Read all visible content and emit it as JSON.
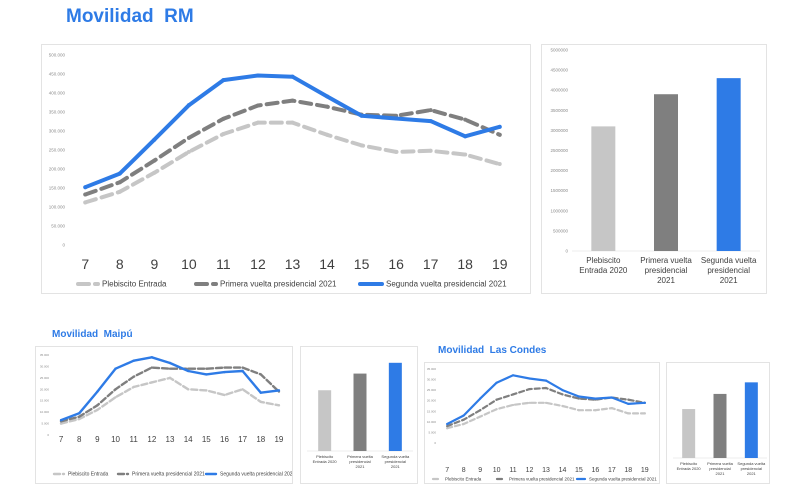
{
  "titles": {
    "main": "Movilidad  RM",
    "maipu": "Movilidad  Maipú",
    "las_condes": "Movilidad  Las Condes"
  },
  "colors": {
    "plebiscito": "#c6c6c6",
    "primera": "#7f7f7f",
    "segunda": "#2e7be6",
    "title": "#2e7be6"
  },
  "chart_data": [
    {
      "id": "rm-line",
      "type": "line",
      "title": "Movilidad  RM",
      "categories": [
        "7",
        "8",
        "9",
        "10",
        "11",
        "12",
        "13",
        "14",
        "15",
        "16",
        "17",
        "18",
        "19"
      ],
      "ylim": [
        0,
        500000
      ],
      "yticks": [
        "0",
        "50.000",
        "100.000",
        "150.000",
        "200.000",
        "250.000",
        "300.000",
        "350.000",
        "400.000",
        "450.000",
        "500.000"
      ],
      "legend_position": "bottom",
      "series": [
        {
          "name": "Plebiscito Entrada",
          "style": "dashed",
          "color": "#c6c6c6",
          "values": [
            112000,
            140000,
            190000,
            245000,
            292000,
            322000,
            322000,
            290000,
            262000,
            245000,
            248000,
            238000,
            213000
          ]
        },
        {
          "name": "Primera vuelta presidencial 2021",
          "style": "dashed",
          "color": "#7f7f7f",
          "values": [
            133000,
            165000,
            222000,
            282000,
            332000,
            367000,
            380000,
            364000,
            343000,
            340000,
            355000,
            330000,
            290000
          ]
        },
        {
          "name": "Segunda vuelta presidencial 2021",
          "style": "solid",
          "color": "#2e7be6",
          "values": [
            152000,
            188000,
            277000,
            368000,
            434000,
            446000,
            443000,
            391000,
            340000,
            333000,
            326000,
            286000,
            311000
          ]
        }
      ]
    },
    {
      "id": "rm-bar",
      "type": "bar",
      "categories": [
        "Plebiscito Entrada 2020",
        "Primera vuelta presidencial 2021",
        "Segunda vuelta presidencial 2021"
      ],
      "values": [
        3100000,
        3900000,
        4300000
      ],
      "ylim": [
        0,
        5000000
      ],
      "yticks": [
        "0",
        "500000",
        "1000000",
        "1500000",
        "2000000",
        "2500000",
        "3000000",
        "3500000",
        "4000000",
        "4500000",
        "5000000"
      ]
    },
    {
      "id": "maipu-line",
      "type": "line",
      "title": "Movilidad  Maipú",
      "categories": [
        "7",
        "8",
        "9",
        "10",
        "11",
        "12",
        "13",
        "14",
        "15",
        "16",
        "17",
        "18",
        "19"
      ],
      "ylim": [
        0,
        35000
      ],
      "yticks": [
        "0",
        "5.000",
        "10.000",
        "15.000",
        "20.000",
        "25.000",
        "30.000",
        "35.000"
      ],
      "legend_position": "bottom",
      "series": [
        {
          "name": "Plebiscito Entrada",
          "style": "dashed",
          "color": "#c6c6c6",
          "values": [
            5000,
            7000,
            11000,
            16500,
            21000,
            23000,
            25000,
            20000,
            19500,
            17500,
            20000,
            14500,
            13000
          ]
        },
        {
          "name": "Primera vuelta presidencial 2021",
          "style": "dashed",
          "color": "#7f7f7f",
          "values": [
            6000,
            8000,
            13000,
            20000,
            25500,
            29500,
            29000,
            29000,
            29000,
            29500,
            29500,
            26500,
            19000
          ]
        },
        {
          "name": "Segunda vuelta presidencial 2021",
          "style": "solid",
          "color": "#2e7be6",
          "values": [
            6500,
            9500,
            19000,
            29000,
            32500,
            34000,
            31500,
            28000,
            26500,
            27500,
            28000,
            18500,
            19500
          ]
        }
      ]
    },
    {
      "id": "maipu-bar",
      "type": "bar",
      "categories": [
        "Plebiscito Entrada 2020",
        "Primera vuelta presidencial 2021",
        "Segunda vuelta presidencial 2021"
      ],
      "values": [
        0.62,
        0.79,
        0.9
      ],
      "ylim": [
        0,
        1
      ]
    },
    {
      "id": "lascondes-line",
      "type": "line",
      "title": "Movilidad  Las Condes",
      "categories": [
        "7",
        "8",
        "9",
        "10",
        "11",
        "12",
        "13",
        "14",
        "15",
        "16",
        "17",
        "18",
        "19"
      ],
      "ylim": [
        0,
        35000
      ],
      "yticks": [
        "0",
        "5.000",
        "10.000",
        "15.000",
        "20.000",
        "25.000",
        "30.000",
        "35.000"
      ],
      "legend_position": "bottom",
      "series": [
        {
          "name": "Plebiscito Entrada",
          "style": "dashed",
          "color": "#c6c6c6",
          "values": [
            7000,
            9000,
            12500,
            16000,
            18000,
            19000,
            19000,
            17500,
            15500,
            15500,
            16500,
            14000,
            14000
          ]
        },
        {
          "name": "Primera vuelta presidencial 2021",
          "style": "dashed",
          "color": "#7f7f7f",
          "values": [
            8000,
            11000,
            15500,
            20500,
            23000,
            25500,
            26000,
            23000,
            21000,
            20500,
            21500,
            20500,
            19000
          ]
        },
        {
          "name": "Segunda vuelta presidencial 2021",
          "style": "solid",
          "color": "#2e7be6",
          "values": [
            9000,
            13000,
            21000,
            28500,
            32000,
            30500,
            29500,
            25000,
            22000,
            21000,
            21500,
            18500,
            19000
          ]
        }
      ]
    },
    {
      "id": "lascondes-bar",
      "type": "bar",
      "categories": [
        "Plebiscito Entrada 2020",
        "Primera vuelta presidencial 2021",
        "Segunda vuelta presidencial 2021"
      ],
      "values": [
        0.55,
        0.72,
        0.85
      ],
      "ylim": [
        0,
        1
      ]
    }
  ]
}
